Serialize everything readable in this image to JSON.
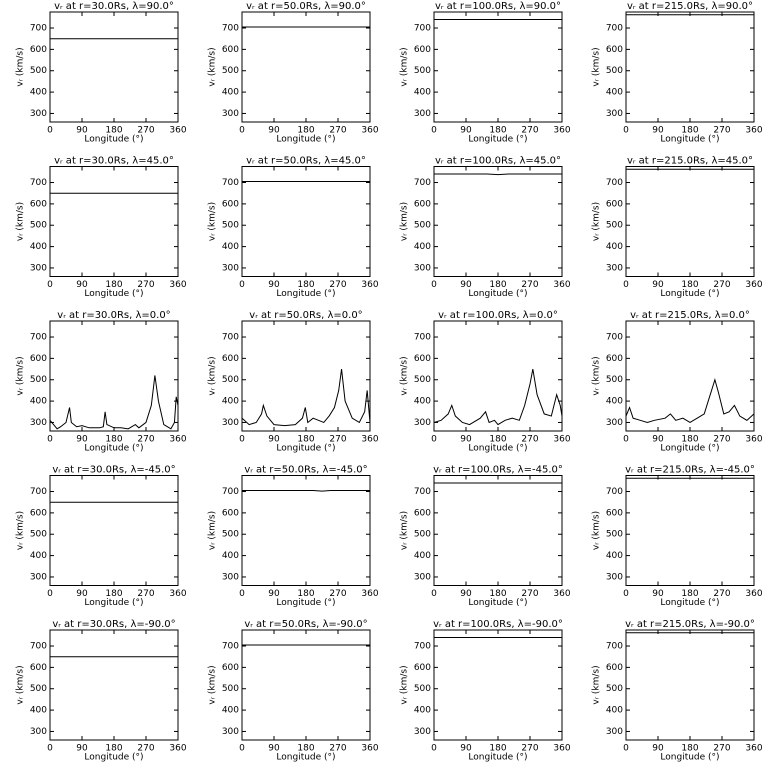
{
  "chart_data": [
    {
      "type": "line",
      "title": "vᵣ at r=30.0Rs, λ=90.0°",
      "xlabel": "Longitude (°)",
      "ylabel": "vᵣ (km/s)",
      "xlim": [
        0,
        360
      ],
      "ylim": [
        260,
        775
      ],
      "xticks": [
        0,
        90,
        180,
        270,
        360
      ],
      "yticks": [
        300,
        400,
        500,
        600,
        700
      ],
      "color": "#000000",
      "x": [
        0,
        360
      ],
      "values": [
        650,
        650
      ]
    },
    {
      "type": "line",
      "title": "vᵣ at r=50.0Rs, λ=90.0°",
      "xlabel": "Longitude (°)",
      "ylabel": "vᵣ (km/s)",
      "xlim": [
        0,
        360
      ],
      "ylim": [
        260,
        775
      ],
      "xticks": [
        0,
        90,
        180,
        270,
        360
      ],
      "yticks": [
        300,
        400,
        500,
        600,
        700
      ],
      "color": "#000000",
      "x": [
        0,
        360
      ],
      "values": [
        705,
        705
      ]
    },
    {
      "type": "line",
      "title": "vᵣ at r=100.0Rs, λ=90.0°",
      "xlabel": "Longitude (°)",
      "ylabel": "vᵣ (km/s)",
      "xlim": [
        0,
        360
      ],
      "ylim": [
        260,
        775
      ],
      "xticks": [
        0,
        90,
        180,
        270,
        360
      ],
      "yticks": [
        300,
        400,
        500,
        600,
        700
      ],
      "color": "#000000",
      "x": [
        0,
        360
      ],
      "values": [
        740,
        740
      ]
    },
    {
      "type": "line",
      "title": "vᵣ at r=215.0Rs, λ=90.0°",
      "xlabel": "Longitude (°)",
      "ylabel": "vᵣ (km/s)",
      "xlim": [
        0,
        360
      ],
      "ylim": [
        260,
        775
      ],
      "xticks": [
        0,
        90,
        180,
        270,
        360
      ],
      "yticks": [
        300,
        400,
        500,
        600,
        700
      ],
      "color": "#000000",
      "x": [
        0,
        360
      ],
      "values": [
        762,
        762
      ]
    },
    {
      "type": "line",
      "title": "vᵣ at r=30.0Rs, λ=45.0°",
      "xlabel": "Longitude (°)",
      "ylabel": "vᵣ (km/s)",
      "xlim": [
        0,
        360
      ],
      "ylim": [
        260,
        775
      ],
      "xticks": [
        0,
        90,
        180,
        270,
        360
      ],
      "yticks": [
        300,
        400,
        500,
        600,
        700
      ],
      "color": "#000000",
      "x": [
        0,
        360
      ],
      "values": [
        650,
        650
      ]
    },
    {
      "type": "line",
      "title": "vᵣ at r=50.0Rs, λ=45.0°",
      "xlabel": "Longitude (°)",
      "ylabel": "vᵣ (km/s)",
      "xlim": [
        0,
        360
      ],
      "ylim": [
        260,
        775
      ],
      "xticks": [
        0,
        90,
        180,
        270,
        360
      ],
      "yticks": [
        300,
        400,
        500,
        600,
        700
      ],
      "color": "#000000",
      "x": [
        0,
        360
      ],
      "values": [
        705,
        705
      ]
    },
    {
      "type": "line",
      "title": "vᵣ at r=100.0Rs, λ=45.0°",
      "xlabel": "Longitude (°)",
      "ylabel": "vᵣ (km/s)",
      "xlim": [
        0,
        360
      ],
      "ylim": [
        260,
        775
      ],
      "xticks": [
        0,
        90,
        180,
        270,
        360
      ],
      "yticks": [
        300,
        400,
        500,
        600,
        700
      ],
      "color": "#000000",
      "x": [
        0,
        150,
        180,
        210,
        360
      ],
      "values": [
        740,
        740,
        737,
        740,
        740
      ]
    },
    {
      "type": "line",
      "title": "vᵣ at r=215.0Rs, λ=45.0°",
      "xlabel": "Longitude (°)",
      "ylabel": "vᵣ (km/s)",
      "xlim": [
        0,
        360
      ],
      "ylim": [
        260,
        775
      ],
      "xticks": [
        0,
        90,
        180,
        270,
        360
      ],
      "yticks": [
        300,
        400,
        500,
        600,
        700
      ],
      "color": "#000000",
      "x": [
        0,
        360
      ],
      "values": [
        762,
        762
      ]
    },
    {
      "type": "line",
      "title": "vᵣ at r=30.0Rs, λ=0.0°",
      "xlabel": "Longitude (°)",
      "ylabel": "vᵣ (km/s)",
      "xlim": [
        0,
        360
      ],
      "ylim": [
        260,
        775
      ],
      "xticks": [
        0,
        90,
        180,
        270,
        360
      ],
      "yticks": [
        300,
        400,
        500,
        600,
        700
      ],
      "color": "#000000",
      "x": [
        0,
        10,
        20,
        30,
        45,
        55,
        60,
        75,
        90,
        110,
        140,
        150,
        155,
        160,
        180,
        200,
        220,
        240,
        250,
        270,
        285,
        295,
        305,
        320,
        340,
        350,
        355,
        360
      ],
      "values": [
        310,
        290,
        270,
        280,
        300,
        370,
        300,
        280,
        285,
        275,
        275,
        280,
        350,
        290,
        275,
        275,
        270,
        290,
        275,
        300,
        380,
        520,
        400,
        290,
        270,
        300,
        420,
        380
      ]
    },
    {
      "type": "line",
      "title": "vᵣ at r=50.0Rs, λ=0.0°",
      "xlabel": "Longitude (°)",
      "ylabel": "vᵣ (km/s)",
      "xlim": [
        0,
        360
      ],
      "ylim": [
        260,
        775
      ],
      "xticks": [
        0,
        90,
        180,
        270,
        360
      ],
      "yticks": [
        300,
        400,
        500,
        600,
        700
      ],
      "color": "#000000",
      "x": [
        0,
        20,
        40,
        55,
        60,
        70,
        90,
        120,
        150,
        170,
        178,
        185,
        200,
        215,
        230,
        245,
        260,
        272,
        280,
        290,
        310,
        330,
        345,
        352,
        360
      ],
      "values": [
        320,
        290,
        300,
        340,
        380,
        330,
        290,
        285,
        290,
        320,
        370,
        300,
        320,
        310,
        300,
        330,
        370,
        450,
        550,
        400,
        320,
        300,
        350,
        450,
        300
      ]
    },
    {
      "type": "line",
      "title": "vᵣ at r=100.0Rs, λ=0.0°",
      "xlabel": "Longitude (°)",
      "ylabel": "vᵣ (km/s)",
      "xlim": [
        0,
        360
      ],
      "ylim": [
        260,
        775
      ],
      "xticks": [
        0,
        90,
        180,
        270,
        360
      ],
      "yticks": [
        300,
        400,
        500,
        600,
        700
      ],
      "color": "#000000",
      "x": [
        0,
        20,
        40,
        50,
        60,
        80,
        100,
        130,
        145,
        155,
        170,
        180,
        200,
        220,
        240,
        255,
        270,
        278,
        290,
        310,
        330,
        345,
        355,
        360
      ],
      "values": [
        300,
        310,
        340,
        380,
        330,
        300,
        290,
        320,
        350,
        300,
        310,
        290,
        310,
        320,
        310,
        380,
        480,
        550,
        430,
        340,
        330,
        430,
        380,
        330
      ]
    },
    {
      "type": "line",
      "title": "vᵣ at r=215.0Rs, λ=0.0°",
      "xlabel": "Longitude (°)",
      "ylabel": "vᵣ (km/s)",
      "xlim": [
        0,
        360
      ],
      "ylim": [
        260,
        775
      ],
      "xticks": [
        0,
        90,
        180,
        270,
        360
      ],
      "yticks": [
        300,
        400,
        500,
        600,
        700
      ],
      "color": "#000000",
      "x": [
        0,
        10,
        20,
        40,
        60,
        80,
        110,
        125,
        140,
        160,
        180,
        200,
        220,
        235,
        250,
        260,
        275,
        290,
        305,
        320,
        340,
        360
      ],
      "values": [
        330,
        370,
        320,
        310,
        300,
        310,
        320,
        340,
        310,
        320,
        300,
        320,
        340,
        420,
        500,
        440,
        340,
        350,
        380,
        330,
        310,
        340
      ]
    },
    {
      "type": "line",
      "title": "vᵣ at r=30.0Rs, λ=-45.0°",
      "xlabel": "Longitude (°)",
      "ylabel": "vᵣ (km/s)",
      "xlim": [
        0,
        360
      ],
      "ylim": [
        260,
        775
      ],
      "xticks": [
        0,
        90,
        180,
        270,
        360
      ],
      "yticks": [
        300,
        400,
        500,
        600,
        700
      ],
      "color": "#000000",
      "x": [
        0,
        360
      ],
      "values": [
        650,
        650
      ]
    },
    {
      "type": "line",
      "title": "vᵣ at r=50.0Rs, λ=-45.0°",
      "xlabel": "Longitude (°)",
      "ylabel": "vᵣ (km/s)",
      "xlim": [
        0,
        360
      ],
      "ylim": [
        260,
        775
      ],
      "xticks": [
        0,
        90,
        180,
        270,
        360
      ],
      "yticks": [
        300,
        400,
        500,
        600,
        700
      ],
      "color": "#000000",
      "x": [
        0,
        200,
        225,
        250,
        360
      ],
      "values": [
        705,
        705,
        702,
        705,
        705
      ]
    },
    {
      "type": "line",
      "title": "vᵣ at r=100.0Rs, λ=-45.0°",
      "xlabel": "Longitude (°)",
      "ylabel": "vᵣ (km/s)",
      "xlim": [
        0,
        360
      ],
      "ylim": [
        260,
        775
      ],
      "xticks": [
        0,
        90,
        180,
        270,
        360
      ],
      "yticks": [
        300,
        400,
        500,
        600,
        700
      ],
      "color": "#000000",
      "x": [
        0,
        360
      ],
      "values": [
        740,
        740
      ]
    },
    {
      "type": "line",
      "title": "vᵣ at r=215.0Rs, λ=-45.0°",
      "xlabel": "Longitude (°)",
      "ylabel": "vᵣ (km/s)",
      "xlim": [
        0,
        360
      ],
      "ylim": [
        260,
        775
      ],
      "xticks": [
        0,
        90,
        180,
        270,
        360
      ],
      "yticks": [
        300,
        400,
        500,
        600,
        700
      ],
      "color": "#000000",
      "x": [
        0,
        360
      ],
      "values": [
        762,
        762
      ]
    },
    {
      "type": "line",
      "title": "vᵣ at r=30.0Rs, λ=-90.0°",
      "xlabel": "Longitude (°)",
      "ylabel": "vᵣ (km/s)",
      "xlim": [
        0,
        360
      ],
      "ylim": [
        260,
        775
      ],
      "xticks": [
        0,
        90,
        180,
        270,
        360
      ],
      "yticks": [
        300,
        400,
        500,
        600,
        700
      ],
      "color": "#000000",
      "x": [
        0,
        360
      ],
      "values": [
        650,
        650
      ]
    },
    {
      "type": "line",
      "title": "vᵣ at r=50.0Rs, λ=-90.0°",
      "xlabel": "Longitude (°)",
      "ylabel": "vᵣ (km/s)",
      "xlim": [
        0,
        360
      ],
      "ylim": [
        260,
        775
      ],
      "xticks": [
        0,
        90,
        180,
        270,
        360
      ],
      "yticks": [
        300,
        400,
        500,
        600,
        700
      ],
      "color": "#000000",
      "x": [
        0,
        360
      ],
      "values": [
        705,
        705
      ]
    },
    {
      "type": "line",
      "title": "vᵣ at r=100.0Rs, λ=-90.0°",
      "xlabel": "Longitude (°)",
      "ylabel": "vᵣ (km/s)",
      "xlim": [
        0,
        360
      ],
      "ylim": [
        260,
        775
      ],
      "xticks": [
        0,
        90,
        180,
        270,
        360
      ],
      "yticks": [
        300,
        400,
        500,
        600,
        700
      ],
      "color": "#000000",
      "x": [
        0,
        360
      ],
      "values": [
        740,
        740
      ]
    },
    {
      "type": "line",
      "title": "vᵣ at r=215.0Rs, λ=-90.0°",
      "xlabel": "Longitude (°)",
      "ylabel": "vᵣ (km/s)",
      "xlim": [
        0,
        360
      ],
      "ylim": [
        260,
        775
      ],
      "xticks": [
        0,
        90,
        180,
        270,
        360
      ],
      "yticks": [
        300,
        400,
        500,
        600,
        700
      ],
      "color": "#000000",
      "x": [
        0,
        360
      ],
      "values": [
        762,
        762
      ]
    }
  ]
}
